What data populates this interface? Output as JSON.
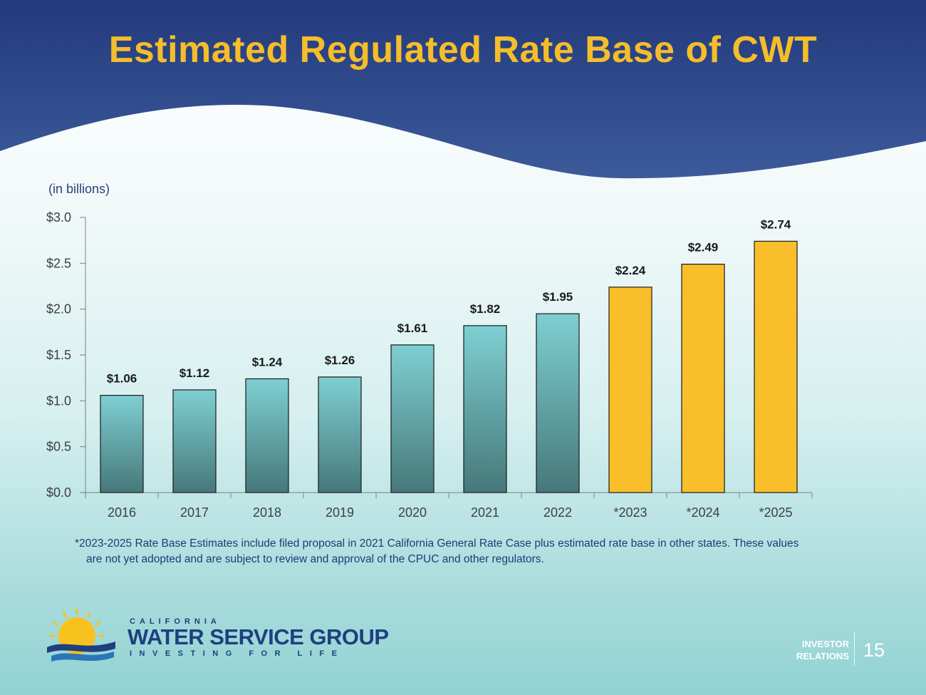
{
  "slide": {
    "title": "Estimated Regulated Rate Base of CWT",
    "unit_label": "(in billions)",
    "footnote_line1": "*2023-2025 Rate Base Estimates include filed proposal in 2021 California General Rate Case plus estimated rate base in other states. These values",
    "footnote_line2": "are not yet adopted and are subject to review and approval of the CPUC and other regulators.",
    "page_number": "15",
    "investor_relations_line1": "INVESTOR",
    "investor_relations_line2": "RELATIONS"
  },
  "logo": {
    "top_text": "CALIFORNIA",
    "name": "WATER SERVICE GROUP",
    "tagline": "INVESTING FOR LIFE",
    "icon": "sun-and-waves-icon"
  },
  "colors": {
    "title": "#f5bd2a",
    "header_wave": "#27407f",
    "historical_bar_top": "#7ecfd2",
    "historical_bar_bottom": "#46787a",
    "estimate_bar": "#f8bf2a",
    "text_dark": "#1f3a78"
  },
  "chart_data": {
    "type": "bar",
    "categories": [
      "2016",
      "2017",
      "2018",
      "2019",
      "2020",
      "2021",
      "2022",
      "*2023",
      "*2024",
      "*2025"
    ],
    "values": [
      1.06,
      1.12,
      1.24,
      1.26,
      1.61,
      1.82,
      1.95,
      2.24,
      2.49,
      2.74
    ],
    "data_labels": [
      "$1.06",
      "$1.12",
      "$1.24",
      "$1.26",
      "$1.61",
      "$1.82",
      "$1.95",
      "$2.24",
      "$2.49",
      "$2.74"
    ],
    "estimated": [
      false,
      false,
      false,
      false,
      false,
      false,
      false,
      true,
      true,
      true
    ],
    "ylim": [
      0,
      3.0
    ],
    "yticks": [
      0,
      0.5,
      1.0,
      1.5,
      2.0,
      2.5,
      3.0
    ],
    "ytick_labels": [
      "$0.0",
      "$0.5",
      "$1.0",
      "$1.5",
      "$2.0",
      "$2.5",
      "$3.0"
    ],
    "grid": false,
    "legend": "none"
  }
}
